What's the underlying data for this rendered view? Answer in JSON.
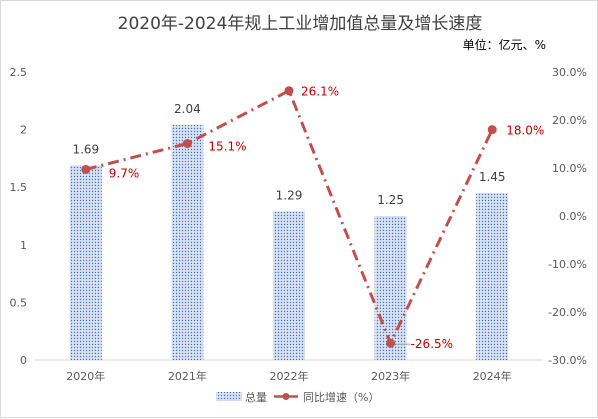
{
  "chart_data": {
    "type": "bar+line",
    "title": "2020年-2024年规上工业增加值总量及增长速度",
    "unit_note": "单位：亿元、%",
    "categories": [
      "2020年",
      "2021年",
      "2022年",
      "2023年",
      "2024年"
    ],
    "series": [
      {
        "name": "总量",
        "type": "bar",
        "axis": "left",
        "values": [
          1.69,
          2.04,
          1.29,
          1.25,
          1.45
        ],
        "labels": [
          "1.69",
          "2.04",
          "1.29",
          "1.25",
          "1.45"
        ]
      },
      {
        "name": "同比增速（%）",
        "type": "line",
        "axis": "right",
        "values": [
          9.7,
          15.1,
          26.1,
          -26.5,
          18.0
        ],
        "labels": [
          "9.7%",
          "15.1%",
          "26.1%",
          "-26.5%",
          "18.0%"
        ]
      }
    ],
    "y_left": {
      "ylim": [
        0,
        2.5
      ],
      "ticks": [
        "0",
        "0.5",
        "1",
        "1.5",
        "2",
        "2.5"
      ]
    },
    "y_right": {
      "ylim": [
        -30,
        30
      ],
      "ticks": [
        "-30.0%",
        "-20.0%",
        "-10.0%",
        "0.0%",
        "10.0%",
        "20.0%",
        "30.0%"
      ]
    },
    "grid": false,
    "legend_position": "bottom",
    "colors": {
      "bar_fill": "#dae3f3",
      "bar_dots": "#4472c4",
      "line": "#c0504d",
      "line_label": "#c00000"
    }
  }
}
